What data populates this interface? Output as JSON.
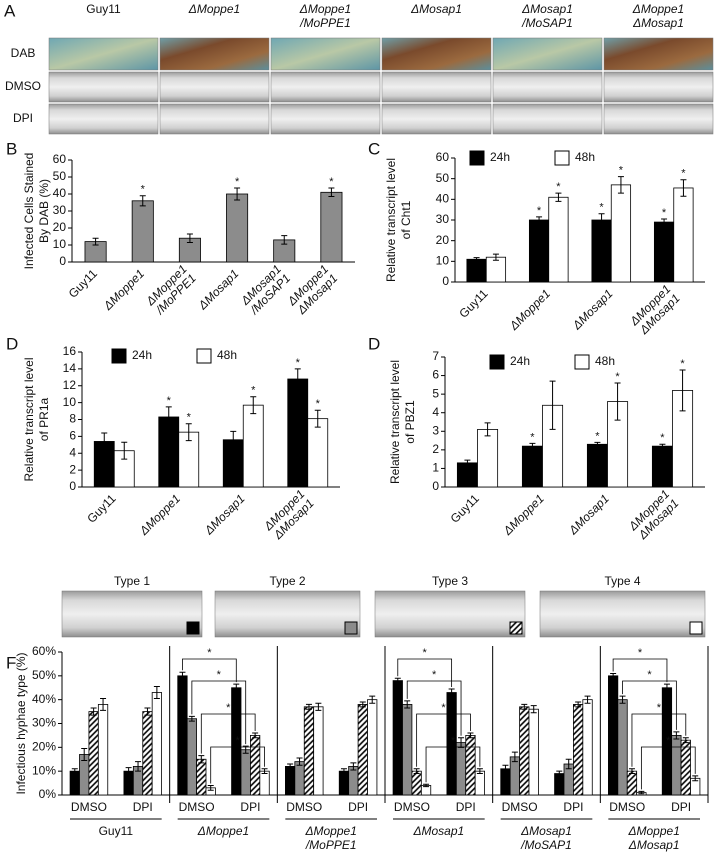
{
  "panel_a": {
    "label": "A",
    "columns": [
      [
        "Guy11"
      ],
      [
        "ΔMoppe1"
      ],
      [
        "ΔMoppe1",
        "/MoPPE1"
      ],
      [
        "ΔMosap1"
      ],
      [
        "ΔMosap1",
        "/MoSAP1"
      ],
      [
        "ΔMoppe1",
        "ΔMosap1"
      ]
    ],
    "rows": [
      "DAB",
      "DMSO",
      "DPI"
    ]
  },
  "chart_data": [
    {
      "type": "bar",
      "panel": "B",
      "ylabel": [
        "Infected Cells Stained",
        "By DAB (%)"
      ],
      "categories": [
        [
          "Guy11"
        ],
        [
          "ΔMoppe1"
        ],
        [
          "ΔMoppe1",
          "/MoPPE1"
        ],
        [
          "ΔMosap1"
        ],
        [
          "ΔMosap1",
          "/MoSAP1"
        ],
        [
          "ΔMoppe1",
          "ΔMosap1"
        ]
      ],
      "series": [
        {
          "color": "#8c8c8c",
          "values": [
            12,
            36,
            14,
            40,
            13,
            41
          ],
          "errors": [
            2,
            3,
            2.5,
            3.5,
            2.5,
            2.5
          ],
          "significance": [
            null,
            "*",
            null,
            "*",
            null,
            "*"
          ]
        }
      ],
      "ylim": [
        0,
        60
      ],
      "yticks": [
        0,
        10,
        20,
        30,
        40,
        50,
        60
      ]
    },
    {
      "type": "bar",
      "panel": "C",
      "ylabel": [
        "Relative transcript level",
        "of Cht1"
      ],
      "legend": "top",
      "categories": [
        [
          "Guy11"
        ],
        [
          "ΔMoppe1"
        ],
        [
          "ΔMosap1"
        ],
        [
          "ΔMoppe1",
          "ΔMosap1"
        ]
      ],
      "series": [
        {
          "name": "24h",
          "color": "#000000",
          "values": [
            11,
            30,
            30,
            29
          ],
          "errors": [
            0.8,
            1.5,
            3,
            1.5
          ],
          "significance": [
            null,
            "*",
            "*",
            "*"
          ]
        },
        {
          "name": "48h",
          "color": "#ffffff",
          "values": [
            12,
            41,
            47,
            45.5
          ],
          "errors": [
            1.5,
            2,
            4,
            4
          ],
          "significance": [
            null,
            "*",
            "*",
            "*"
          ]
        }
      ],
      "ylim": [
        0,
        60
      ],
      "yticks": [
        0,
        10,
        20,
        30,
        40,
        50,
        60
      ]
    },
    {
      "type": "bar",
      "panel": "D",
      "ylabel": [
        "Relative transcript level",
        "of PR1a"
      ],
      "legend": "top",
      "categories": [
        [
          "Guy11"
        ],
        [
          "ΔMoppe1"
        ],
        [
          "ΔMosap1"
        ],
        [
          "ΔMoppe1",
          "ΔMosap1"
        ]
      ],
      "series": [
        {
          "name": "24h",
          "color": "#000000",
          "values": [
            5.4,
            8.3,
            5.6,
            12.8
          ],
          "errors": [
            1,
            1.2,
            1,
            1.2
          ],
          "significance": [
            null,
            "*",
            null,
            "*"
          ]
        },
        {
          "name": "48h",
          "color": "#ffffff",
          "values": [
            4.3,
            6.5,
            9.7,
            8.1
          ],
          "errors": [
            1,
            1,
            1,
            1
          ],
          "significance": [
            null,
            "*",
            "*",
            "*"
          ]
        }
      ],
      "ylim": [
        0,
        16
      ],
      "yticks": [
        0,
        2,
        4,
        6,
        8,
        10,
        12,
        14,
        16
      ]
    },
    {
      "type": "bar",
      "panel": "D",
      "ylabel": [
        "Relative transcript level",
        "of PBZ1"
      ],
      "legend": "top",
      "categories": [
        [
          "Guy11"
        ],
        [
          "ΔMoppe1"
        ],
        [
          "ΔMosap1"
        ],
        [
          "ΔMoppe1",
          "ΔMosap1"
        ]
      ],
      "series": [
        {
          "name": "24h",
          "color": "#000000",
          "values": [
            1.3,
            2.2,
            2.3,
            2.2
          ],
          "errors": [
            0.15,
            0.15,
            0.1,
            0.1
          ],
          "significance": [
            null,
            "*",
            "*",
            "*"
          ]
        },
        {
          "name": "48h",
          "color": "#ffffff",
          "values": [
            3.1,
            4.4,
            4.6,
            5.2
          ],
          "errors": [
            0.35,
            1.3,
            1,
            1.1
          ],
          "significance": [
            null,
            null,
            "*",
            "*"
          ]
        }
      ],
      "ylim": [
        0,
        7
      ],
      "yticks": [
        0,
        1,
        2,
        3,
        4,
        5,
        6,
        7
      ]
    },
    {
      "type": "bar",
      "panel": "F",
      "ylabel": [
        "Infectious hyphae type (%)"
      ],
      "legend": "above",
      "categories": [
        "DMSO",
        "DPI",
        "DMSO",
        "DPI",
        "DMSO",
        "DPI",
        "DMSO",
        "DPI",
        "DMSO",
        "DPI",
        "DMSO",
        "DPI"
      ],
      "groups": [
        [
          "Guy11"
        ],
        [
          "ΔMoppe1"
        ],
        [
          "ΔMoppe1",
          "/MoPPE1"
        ],
        [
          "ΔMosap1"
        ],
        [
          "ΔMosap1",
          "/MoSAP1"
        ],
        [
          "ΔMoppe1",
          "ΔMosap1"
        ]
      ],
      "series": [
        {
          "name": "Type 1",
          "color": "#000000",
          "values": [
            10,
            10,
            50,
            45,
            12,
            10,
            48,
            43,
            11,
            9,
            50,
            45
          ],
          "errors": [
            1,
            1.5,
            1.5,
            1.5,
            1,
            1,
            1,
            1.5,
            1.5,
            1,
            1,
            1.5
          ]
        },
        {
          "name": "Type 2",
          "color": "#8c8c8c",
          "values": [
            17,
            12,
            32,
            19,
            14,
            12,
            38,
            22,
            16,
            13,
            40,
            25
          ],
          "errors": [
            2.5,
            2,
            1,
            1.5,
            1.5,
            1.5,
            1.5,
            2,
            2,
            2,
            1.5,
            1.5
          ]
        },
        {
          "name": "Type 3",
          "color": "#ffffff",
          "hatch": true,
          "values": [
            35,
            35,
            15,
            25,
            37,
            38,
            10,
            25,
            37,
            38,
            10,
            23
          ],
          "errors": [
            1.5,
            1.5,
            1.5,
            1,
            1,
            1,
            1,
            1,
            1,
            1,
            1,
            1
          ]
        },
        {
          "name": "Type 4",
          "color": "#ffffff",
          "values": [
            38,
            43,
            3,
            10,
            37,
            40,
            4,
            10,
            36,
            40,
            1,
            7
          ],
          "errors": [
            2.5,
            2.5,
            1,
            1,
            1.5,
            1.5,
            0.5,
            1,
            1.5,
            1.5,
            0.5,
            1
          ]
        }
      ],
      "brackets": [
        {
          "series": 0,
          "from": 2,
          "to": 3,
          "label": "*"
        },
        {
          "series": 1,
          "from": 2,
          "to": 3,
          "label": "*"
        },
        {
          "series": 2,
          "from": 2,
          "to": 3,
          "label": "*"
        },
        {
          "series": 3,
          "from": 2,
          "to": 3,
          "label": "*"
        },
        {
          "series": 0,
          "from": 6,
          "to": 7,
          "label": "*"
        },
        {
          "series": 1,
          "from": 6,
          "to": 7,
          "label": "*"
        },
        {
          "series": 2,
          "from": 6,
          "to": 7,
          "label": "*"
        },
        {
          "series": 3,
          "from": 6,
          "to": 7,
          "label": "*"
        },
        {
          "series": 0,
          "from": 10,
          "to": 11,
          "label": "*"
        },
        {
          "series": 1,
          "from": 10,
          "to": 11,
          "label": "*"
        },
        {
          "series": 2,
          "from": 10,
          "to": 11,
          "label": "*"
        },
        {
          "series": 3,
          "from": 10,
          "to": 11,
          "label": "*"
        }
      ],
      "ylim": [
        0,
        60
      ],
      "yticks": [
        {
          "value": 0,
          "label": "0%"
        },
        {
          "value": 10,
          "label": "10%"
        },
        {
          "value": 20,
          "label": "20%"
        },
        {
          "value": 30,
          "label": "30%"
        },
        {
          "value": 40,
          "label": "40%"
        },
        {
          "value": 50,
          "label": "50%"
        },
        {
          "value": 60,
          "label": "60%"
        }
      ]
    }
  ]
}
